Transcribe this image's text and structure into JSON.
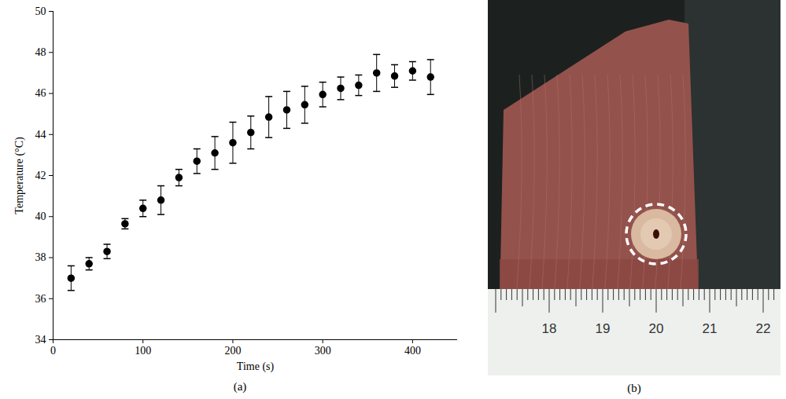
{
  "chart_data": {
    "type": "scatter",
    "caption": "(a)",
    "x_label": "Time (s)",
    "y_label": "Temperature (°C)",
    "x": [
      20,
      40,
      60,
      80,
      100,
      120,
      140,
      160,
      180,
      200,
      220,
      240,
      260,
      280,
      300,
      320,
      340,
      360,
      380,
      400,
      420
    ],
    "values": [
      37.0,
      37.7,
      38.3,
      39.65,
      40.4,
      40.8,
      41.9,
      42.7,
      43.1,
      43.6,
      44.1,
      44.85,
      45.2,
      45.45,
      45.95,
      46.25,
      46.4,
      47.0,
      46.85,
      47.1,
      46.8
    ],
    "errors": [
      0.6,
      0.3,
      0.35,
      0.25,
      0.4,
      0.7,
      0.4,
      0.6,
      0.8,
      1.0,
      0.8,
      1.0,
      0.9,
      0.9,
      0.6,
      0.55,
      0.5,
      0.9,
      0.55,
      0.45,
      0.85
    ],
    "color": "#000000",
    "marker": "circle",
    "xlim": [
      0,
      450
    ],
    "xticks": [
      0,
      100,
      200,
      300,
      400
    ],
    "ylim": [
      34,
      50
    ],
    "yticks": [
      34,
      36,
      38,
      40,
      42,
      44,
      46,
      48,
      50
    ],
    "grid": false
  },
  "photo": {
    "caption": "(b)",
    "ruler_labels": [
      18,
      19,
      20,
      21,
      22
    ],
    "marked_position": 20
  }
}
